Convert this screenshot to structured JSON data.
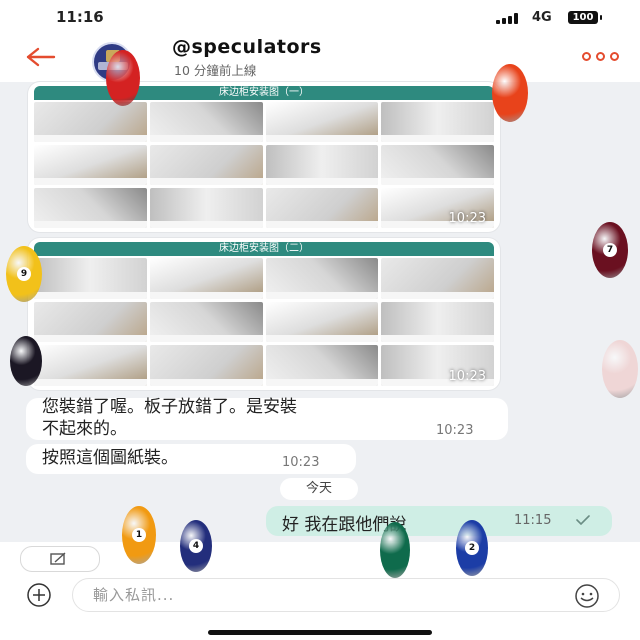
{
  "status_bar": {
    "time": "11:16",
    "network": "4G",
    "battery": "100"
  },
  "header": {
    "contact_name": "@speculators",
    "contact_status": "10 分鐘前上線"
  },
  "messages": {
    "image_1": {
      "title": "床边柜安装图（一）",
      "time": "10:23"
    },
    "image_2": {
      "title": "床边柜安装图（二）",
      "time": "10:23"
    },
    "text_1": {
      "line1": "您裝錯了喔。板子放錯了。是安裝",
      "line2": "不起來的。",
      "time": "10:23"
    },
    "text_2": {
      "text": "按照這個圖紙裝。",
      "time": "10:23"
    },
    "date_separator": "今天",
    "outgoing": {
      "text": "好 我在跟他們說",
      "time": "11:15"
    }
  },
  "input": {
    "placeholder": "輸入私訊..."
  },
  "icons": {
    "back": "back-arrow-icon",
    "more": "more-icon",
    "sticker": "sticker-icon",
    "plus": "plus-icon",
    "emoji": "emoji-icon",
    "read_check": "check-icon"
  },
  "colors": {
    "accent": "#e44c2f",
    "outgoing_bubble": "#cfeee5",
    "image_banner": "#2e8a7f"
  },
  "decor": {
    "balls": [
      {
        "label": "",
        "color": "#d42222"
      },
      {
        "label": "",
        "color": "#e8431b"
      },
      {
        "label": "7",
        "color": "#6a1020"
      },
      {
        "label": "9",
        "color": "#f2c11a"
      },
      {
        "label": "",
        "color": "#1b1724"
      },
      {
        "label": "",
        "color": "#efd6d6"
      },
      {
        "label": "1",
        "color": "#f19a12"
      },
      {
        "label": "4",
        "color": "#232e7c"
      },
      {
        "label": "",
        "color": "#0f6b4c"
      },
      {
        "label": "2",
        "color": "#1c3da6"
      }
    ]
  }
}
